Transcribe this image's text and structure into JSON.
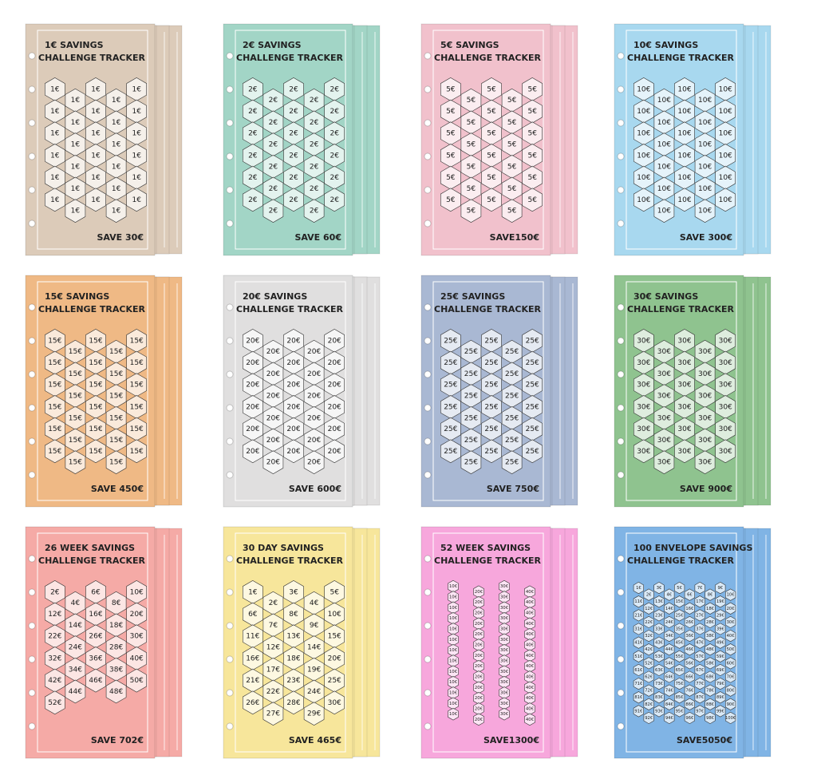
{
  "cards": [
    {
      "title": "1€ SAVINGS",
      "subtitle": "CHALLENGE TRACKER",
      "save": "SAVE 30€",
      "color": "#dccbb9",
      "cells": [
        "1€",
        "1€",
        "1€",
        "1€",
        "1€",
        "1€",
        "1€",
        "1€",
        "1€",
        "1€",
        "1€",
        "1€",
        "1€",
        "1€",
        "1€",
        "1€",
        "1€",
        "1€",
        "1€",
        "1€",
        "1€",
        "1€",
        "1€",
        "1€",
        "1€",
        "1€",
        "1€",
        "1€",
        "1€",
        "1€"
      ]
    },
    {
      "title": "2€ SAVINGS",
      "subtitle": "CHALLENGE TRACKER",
      "save": "SAVE 60€",
      "color": "#a2d5c6",
      "cells": [
        "2€",
        "2€",
        "2€",
        "2€",
        "2€",
        "2€",
        "2€",
        "2€",
        "2€",
        "2€",
        "2€",
        "2€",
        "2€",
        "2€",
        "2€",
        "2€",
        "2€",
        "2€",
        "2€",
        "2€",
        "2€",
        "2€",
        "2€",
        "2€",
        "2€",
        "2€",
        "2€",
        "2€",
        "2€",
        "2€"
      ]
    },
    {
      "title": "5€ SAVINGS",
      "subtitle": "CHALLENGE TRACKER",
      "save": "SAVE150€",
      "color": "#f1c1cc",
      "cells": [
        "5€",
        "5€",
        "5€",
        "5€",
        "5€",
        "5€",
        "5€",
        "5€",
        "5€",
        "5€",
        "5€",
        "5€",
        "5€",
        "5€",
        "5€",
        "5€",
        "5€",
        "5€",
        "5€",
        "5€",
        "5€",
        "5€",
        "5€",
        "5€",
        "5€",
        "5€",
        "5€",
        "5€",
        "5€",
        "5€"
      ]
    },
    {
      "title": "10€ SAVINGS",
      "subtitle": "CHALLENGE TRACKER",
      "save": "SAVE 300€",
      "color": "#a8d8ef",
      "cells": [
        "10€",
        "10€",
        "10€",
        "10€",
        "10€",
        "10€",
        "10€",
        "10€",
        "10€",
        "10€",
        "10€",
        "10€",
        "10€",
        "10€",
        "10€",
        "10€",
        "10€",
        "10€",
        "10€",
        "10€",
        "10€",
        "10€",
        "10€",
        "10€",
        "10€",
        "10€",
        "10€",
        "10€",
        "10€",
        "10€"
      ]
    },
    {
      "title": "15€ SAVINGS",
      "subtitle": "CHALLENGE TRACKER",
      "save": "SAVE 450€",
      "color": "#efb985",
      "cells": [
        "15€",
        "15€",
        "15€",
        "15€",
        "15€",
        "15€",
        "15€",
        "15€",
        "15€",
        "15€",
        "15€",
        "15€",
        "15€",
        "15€",
        "15€",
        "15€",
        "15€",
        "15€",
        "15€",
        "15€",
        "15€",
        "15€",
        "15€",
        "15€",
        "15€",
        "15€",
        "15€",
        "15€",
        "15€",
        "15€"
      ]
    },
    {
      "title": "20€ SAVINGS",
      "subtitle": "CHALLENGE TRACKER",
      "save": "SAVE 600€",
      "color": "#e0dfdf",
      "cells": [
        "20€",
        "20€",
        "20€",
        "20€",
        "20€",
        "20€",
        "20€",
        "20€",
        "20€",
        "20€",
        "20€",
        "20€",
        "20€",
        "20€",
        "20€",
        "20€",
        "20€",
        "20€",
        "20€",
        "20€",
        "20€",
        "20€",
        "20€",
        "20€",
        "20€",
        "20€",
        "20€",
        "20€",
        "20€",
        "20€"
      ]
    },
    {
      "title": "25€ SAVINGS",
      "subtitle": "CHALLENGE TRACKER",
      "save": "SAVE 750€",
      "color": "#a9b8d3",
      "cells": [
        "25€",
        "25€",
        "25€",
        "25€",
        "25€",
        "25€",
        "25€",
        "25€",
        "25€",
        "25€",
        "25€",
        "25€",
        "25€",
        "25€",
        "25€",
        "25€",
        "25€",
        "25€",
        "25€",
        "25€",
        "25€",
        "25€",
        "25€",
        "25€",
        "25€",
        "25€",
        "25€",
        "25€",
        "25€",
        "25€"
      ]
    },
    {
      "title": "30€ SAVINGS",
      "subtitle": "CHALLENGE TRACKER",
      "save": "SAVE 900€",
      "color": "#8fc38f",
      "cells": [
        "30€",
        "30€",
        "30€",
        "30€",
        "30€",
        "30€",
        "30€",
        "30€",
        "30€",
        "30€",
        "30€",
        "30€",
        "30€",
        "30€",
        "30€",
        "30€",
        "30€",
        "30€",
        "30€",
        "30€",
        "30€",
        "30€",
        "30€",
        "30€",
        "30€",
        "30€",
        "30€",
        "30€",
        "30€",
        "30€"
      ]
    },
    {
      "title": "26 WEEK SAVINGS",
      "subtitle": "CHALLENGE TRACKER",
      "save": "SAVE 702€",
      "color": "#f5aaa6",
      "cells": [
        "2€",
        "4€",
        "6€",
        "8€",
        "10€",
        "12€",
        "14€",
        "16€",
        "18€",
        "20€",
        "22€",
        "24€",
        "26€",
        "28€",
        "30€",
        "32€",
        "34€",
        "36€",
        "38€",
        "40€",
        "42€",
        "44€",
        "46€",
        "48€",
        "50€",
        "52€"
      ]
    },
    {
      "title": "30 DAY SAVINGS",
      "subtitle": "CHALLENGE TRACKER",
      "save": "SAVE 465€",
      "color": "#f7e69b",
      "cells": [
        "1€",
        "2€",
        "3€",
        "4€",
        "5€",
        "6€",
        "7€",
        "8€",
        "9€",
        "10€",
        "11€",
        "12€",
        "13€",
        "14€",
        "15€",
        "16€",
        "17€",
        "18€",
        "19€",
        "20€",
        "21€",
        "22€",
        "23€",
        "24€",
        "25€",
        "26€",
        "27€",
        "28€",
        "29€",
        "30€"
      ]
    },
    {
      "title": "52 WEEK SAVINGS",
      "subtitle": "CHALLENGE TRACKER",
      "save": "SAVE1300€",
      "color": "#f7a7dc",
      "cells": [
        "10€",
        "20€",
        "30€",
        "40€",
        "10€",
        "20€",
        "30€",
        "40€",
        "10€",
        "20€",
        "30€",
        "40€",
        "10€",
        "20€",
        "30€",
        "40€",
        "10€",
        "20€",
        "30€",
        "40€",
        "10€",
        "20€",
        "30€",
        "40€",
        "10€",
        "20€",
        "30€",
        "40€",
        "10€",
        "20€",
        "30€",
        "40€",
        "10€",
        "20€",
        "30€",
        "40€",
        "10€",
        "20€",
        "30€",
        "40€",
        "10€",
        "20€",
        "30€",
        "40€",
        "10€",
        "20€",
        "30€",
        "40€",
        "10€",
        "20€",
        "30€",
        "40€"
      ]
    },
    {
      "title": "100 ENVELOPE SAVINGS",
      "subtitle": "CHALLENGE TRACKER",
      "save": "SAVE5050€",
      "color": "#80b4e5",
      "cells": [
        "1€",
        "2€",
        "3€",
        "4€",
        "5€",
        "6€",
        "7€",
        "8€",
        "9€",
        "10€",
        "11€",
        "12€",
        "13€",
        "14€",
        "15€",
        "16€",
        "17€",
        "18€",
        "19€",
        "20€",
        "21€",
        "22€",
        "23€",
        "24€",
        "25€",
        "26€",
        "27€",
        "28€",
        "29€",
        "30€",
        "31€",
        "32€",
        "33€",
        "34€",
        "35€",
        "36€",
        "37€",
        "38€",
        "39€",
        "40€",
        "41€",
        "42€",
        "43€",
        "44€",
        "45€",
        "46€",
        "47€",
        "48€",
        "49€",
        "50€",
        "51€",
        "52€",
        "53€",
        "54€",
        "55€",
        "56€",
        "57€",
        "58€",
        "59€",
        "60€",
        "61€",
        "62€",
        "63€",
        "64€",
        "65€",
        "66€",
        "67€",
        "68€",
        "69€",
        "70€",
        "71€",
        "72€",
        "73€",
        "74€",
        "75€",
        "76€",
        "77€",
        "78€",
        "79€",
        "80€",
        "81€",
        "82€",
        "83€",
        "84€",
        "85€",
        "86€",
        "87€",
        "88€",
        "89€",
        "90€",
        "91€",
        "92€",
        "93€",
        "94€",
        "95€",
        "96€",
        "97€",
        "98€",
        "99€",
        "100€"
      ]
    }
  ]
}
